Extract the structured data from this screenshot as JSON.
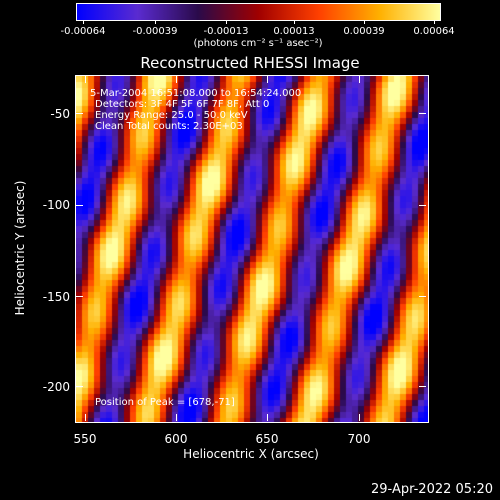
{
  "colorbar": {
    "tick_labels": [
      "-0.00064",
      "-0.00039",
      "-0.00013",
      "0.00013",
      "0.00039",
      "0.00064"
    ],
    "units": "(photons cm⁻² s⁻¹ asec⁻²)",
    "colors": [
      "#0000ff",
      "#5a2bd0",
      "#2a0a4a",
      "#a00000",
      "#ff4000",
      "#ffb000",
      "#ffffa0"
    ]
  },
  "plot": {
    "title": "Reconstructed RHESSI Image",
    "annotations": {
      "time_range": "5-Mar-2004 16:51:08.000 to 16:54:24.000",
      "detectors": "Detectors: 3F 4F 5F 6F 7F 8F, Att 0",
      "energy": "Energy Range: 25.0 - 50.0 keV",
      "clean": "Clean     Total counts: 2.30E+03",
      "peak": "Position of Peak = [678,-71]"
    },
    "xlabel": "Heliocentric X (arcsec)",
    "ylabel": "Heliocentric Y (arcsec)",
    "x_ticks": [
      "550",
      "600",
      "650",
      "700"
    ],
    "y_ticks": [
      "-50",
      "-100",
      "-150",
      "-200"
    ]
  },
  "footer": {
    "timestamp": "29-Apr-2022 05:20"
  }
}
